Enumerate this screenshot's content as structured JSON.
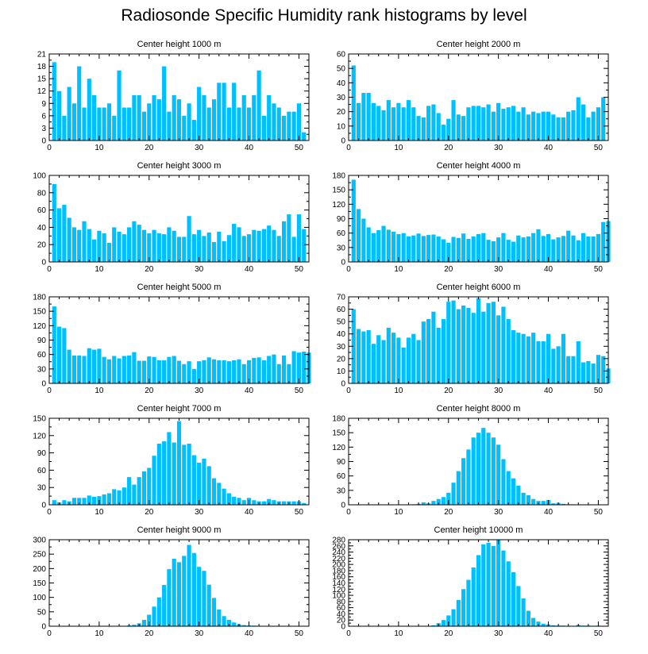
{
  "title": "Radiosonde Specific Humidity rank histograms by level",
  "colors": {
    "bar": "#00bfff",
    "axis": "#000000"
  },
  "chart_data": [
    {
      "type": "bar",
      "title": "Center height 1000 m",
      "xlim": [
        0,
        52
      ],
      "ylim": [
        0,
        21
      ],
      "xticks": [
        0,
        10,
        20,
        30,
        40,
        50
      ],
      "yticks": [
        0,
        3,
        6,
        9,
        12,
        15,
        18,
        21
      ],
      "values": [
        19,
        12,
        6,
        13,
        9,
        18,
        8,
        15,
        11,
        8,
        8,
        9,
        6,
        17,
        8,
        8,
        11,
        11,
        7,
        9,
        11,
        10,
        18,
        7,
        11,
        10,
        6,
        9,
        5,
        13,
        11,
        8,
        10,
        14,
        14,
        8,
        14,
        8,
        11,
        8,
        11,
        17,
        6,
        11,
        9,
        8,
        6,
        7,
        7,
        9,
        2
      ]
    },
    {
      "type": "bar",
      "title": "Center height 2000 m",
      "xlim": [
        0,
        52
      ],
      "ylim": [
        0,
        60
      ],
      "xticks": [
        0,
        10,
        20,
        30,
        40,
        50
      ],
      "yticks": [
        0,
        10,
        20,
        30,
        40,
        50,
        60
      ],
      "values": [
        52,
        26,
        33,
        33,
        26,
        24,
        21,
        28,
        23,
        26,
        23,
        28,
        23,
        17,
        16,
        24,
        25,
        19,
        11,
        15,
        28,
        18,
        17,
        23,
        24,
        24,
        23,
        25,
        20,
        26,
        22,
        23,
        24,
        20,
        23,
        18,
        20,
        19,
        20,
        20,
        18,
        16,
        16,
        20,
        21,
        30,
        25,
        16,
        20,
        23,
        30
      ]
    },
    {
      "type": "bar",
      "title": "Center height 3000 m",
      "xlim": [
        0,
        52
      ],
      "ylim": [
        0,
        100
      ],
      "xticks": [
        0,
        10,
        20,
        30,
        40,
        50
      ],
      "yticks": [
        0,
        20,
        40,
        60,
        80,
        100
      ],
      "values": [
        90,
        62,
        66,
        51,
        40,
        37,
        47,
        38,
        26,
        36,
        33,
        22,
        40,
        35,
        32,
        40,
        47,
        43,
        37,
        33,
        37,
        33,
        32,
        40,
        36,
        29,
        29,
        53,
        32,
        37,
        30,
        34,
        23,
        35,
        24,
        31,
        44,
        40,
        30,
        32,
        37,
        36,
        38,
        42,
        37,
        30,
        47,
        55,
        29,
        55,
        38
      ]
    },
    {
      "type": "bar",
      "title": "Center height 4000 m",
      "xlim": [
        0,
        52
      ],
      "ylim": [
        0,
        180
      ],
      "xticks": [
        0,
        10,
        20,
        30,
        40,
        50
      ],
      "yticks": [
        0,
        30,
        60,
        90,
        120,
        150,
        180
      ],
      "values": [
        171,
        110,
        90,
        72,
        60,
        66,
        75,
        67,
        63,
        58,
        60,
        53,
        55,
        59,
        54,
        56,
        57,
        53,
        47,
        40,
        52,
        50,
        59,
        48,
        53,
        58,
        60,
        46,
        43,
        51,
        60,
        46,
        42,
        55,
        51,
        53,
        60,
        68,
        54,
        58,
        47,
        51,
        54,
        65,
        55,
        45,
        60,
        53,
        53,
        58,
        83,
        85
      ]
    },
    {
      "type": "bar",
      "title": "Center height 5000 m",
      "xlim": [
        0,
        52
      ],
      "ylim": [
        0,
        180
      ],
      "xticks": [
        0,
        10,
        20,
        30,
        40,
        50
      ],
      "yticks": [
        0,
        30,
        60,
        90,
        120,
        150,
        180
      ],
      "values": [
        160,
        118,
        115,
        70,
        58,
        58,
        57,
        73,
        70,
        72,
        55,
        50,
        57,
        52,
        57,
        58,
        65,
        47,
        47,
        56,
        55,
        48,
        48,
        55,
        57,
        47,
        40,
        46,
        30,
        46,
        48,
        54,
        50,
        48,
        48,
        46,
        48,
        50,
        40,
        48,
        53,
        54,
        48,
        57,
        60,
        40,
        58,
        40,
        67,
        64,
        66,
        64
      ]
    },
    {
      "type": "bar",
      "title": "Center height 6000 m",
      "xlim": [
        0,
        52
      ],
      "ylim": [
        0,
        70
      ],
      "xticks": [
        0,
        10,
        20,
        30,
        40,
        50
      ],
      "yticks": [
        0,
        10,
        20,
        30,
        40,
        50,
        60,
        70
      ],
      "values": [
        60,
        44,
        42,
        43,
        32,
        39,
        35,
        45,
        41,
        37,
        29,
        37,
        40,
        35,
        50,
        52,
        58,
        45,
        52,
        66,
        67,
        60,
        63,
        61,
        57,
        69,
        58,
        65,
        66,
        55,
        62,
        52,
        43,
        41,
        40,
        38,
        41,
        34,
        34,
        40,
        28,
        30,
        40,
        22,
        22,
        34,
        17,
        18,
        16,
        23,
        22,
        12
      ]
    },
    {
      "type": "bar",
      "title": "Center height 7000 m",
      "xlim": [
        0,
        52
      ],
      "ylim": [
        0,
        150
      ],
      "xticks": [
        0,
        10,
        20,
        30,
        40,
        50
      ],
      "yticks": [
        0,
        30,
        60,
        90,
        120,
        150
      ],
      "values": [
        8,
        4,
        8,
        6,
        12,
        12,
        12,
        16,
        14,
        15,
        18,
        20,
        27,
        25,
        30,
        48,
        35,
        48,
        58,
        64,
        85,
        106,
        110,
        126,
        108,
        145,
        104,
        106,
        86,
        73,
        80,
        67,
        46,
        38,
        28,
        20,
        14,
        12,
        8,
        12,
        8,
        6,
        6,
        10,
        8,
        6,
        6,
        6,
        6,
        6,
        3
      ]
    },
    {
      "type": "bar",
      "title": "Center height 8000 m",
      "xlim": [
        0,
        52
      ],
      "ylim": [
        0,
        180
      ],
      "xticks": [
        0,
        10,
        20,
        30,
        40,
        50
      ],
      "yticks": [
        0,
        30,
        60,
        90,
        120,
        150,
        180
      ],
      "values": [
        0,
        0,
        0,
        0,
        0,
        0,
        0,
        0,
        0,
        0,
        0,
        0,
        1,
        2,
        5,
        3,
        8,
        12,
        16,
        25,
        46,
        70,
        97,
        115,
        140,
        150,
        160,
        150,
        140,
        125,
        95,
        70,
        55,
        40,
        25,
        20,
        12,
        8,
        8,
        10,
        3,
        4,
        2,
        1,
        1,
        0,
        0,
        0,
        0,
        0,
        0,
        0
      ]
    },
    {
      "type": "bar",
      "title": "Center height 9000 m",
      "xlim": [
        0,
        52
      ],
      "ylim": [
        0,
        300
      ],
      "xticks": [
        0,
        10,
        20,
        30,
        40,
        50
      ],
      "yticks": [
        0,
        50,
        100,
        150,
        200,
        250,
        300
      ],
      "values": [
        0,
        0,
        0,
        0,
        0,
        0,
        0,
        0,
        0,
        0,
        0,
        0,
        0,
        0,
        0,
        3,
        5,
        10,
        22,
        40,
        68,
        100,
        143,
        198,
        234,
        222,
        244,
        282,
        254,
        206,
        192,
        144,
        98,
        58,
        35,
        22,
        13,
        7,
        4,
        3,
        2,
        1,
        1,
        0,
        0,
        0,
        0,
        0,
        0,
        0,
        0
      ]
    },
    {
      "type": "bar",
      "title": "Center height 10000 m",
      "xlim": [
        0,
        52
      ],
      "ylim": [
        0,
        280
      ],
      "xticks": [
        0,
        10,
        20,
        30,
        40,
        50
      ],
      "yticks": [
        0,
        20,
        40,
        60,
        80,
        100,
        120,
        140,
        160,
        180,
        200,
        220,
        240,
        260,
        280
      ],
      "values": [
        0,
        0,
        0,
        0,
        0,
        0,
        0,
        0,
        0,
        0,
        0,
        0,
        0,
        0,
        0,
        0,
        3,
        10,
        20,
        35,
        55,
        85,
        120,
        150,
        190,
        230,
        265,
        270,
        260,
        280,
        245,
        210,
        175,
        130,
        90,
        50,
        27,
        15,
        8,
        6,
        3,
        2,
        2,
        0,
        0,
        4,
        2,
        2,
        1,
        2,
        0
      ]
    }
  ]
}
